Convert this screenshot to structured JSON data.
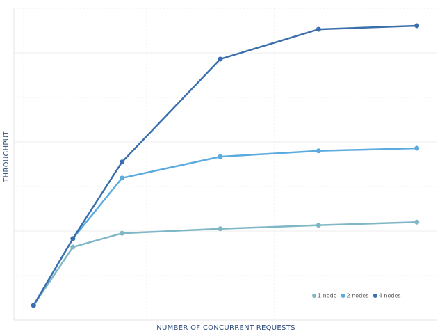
{
  "chart_data": {
    "type": "line",
    "xlabel": "NUMBER OF CONCURRENT REQUESTS",
    "ylabel": "THROUGHPUT",
    "x": [
      0,
      8,
      18,
      38,
      58,
      78
    ],
    "xlim": [
      -4,
      82
    ],
    "ylim": [
      0,
      7
    ],
    "xticks": [
      -2,
      23,
      49,
      75
    ],
    "yticks": [
      1,
      2,
      3,
      4,
      5,
      6,
      7
    ],
    "grid": true,
    "legend": "lower right",
    "series": [
      {
        "name": "1 node",
        "color": "#7fb7c6",
        "values": [
          0.33,
          1.64,
          1.95,
          2.05,
          2.13,
          2.2
        ]
      },
      {
        "name": "2 nodes",
        "color": "#5aabdf",
        "values": [
          0.33,
          1.83,
          3.19,
          3.67,
          3.8,
          3.86
        ]
      },
      {
        "name": "4 nodes",
        "color": "#3a6fad",
        "values": [
          0.33,
          1.83,
          3.55,
          5.86,
          6.53,
          6.61
        ]
      }
    ]
  }
}
